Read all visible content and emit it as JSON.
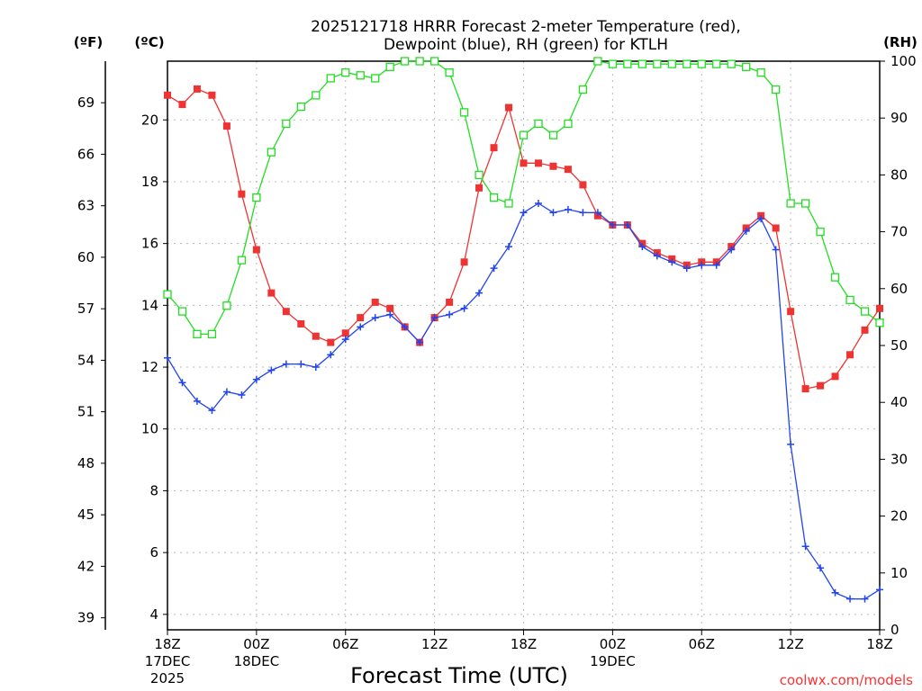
{
  "chart_data": {
    "type": "line",
    "title_line1": "2025121718 HRRR Forecast 2-meter Temperature (red),",
    "title_line2": "Dewpoint (blue), RH (green) for KTLH",
    "xlabel": "Forecast Time (UTC)",
    "credit": "coolwx.com/models",
    "unit_f": "(ºF)",
    "unit_c": "(ºC)",
    "unit_rh": "(RH)",
    "x_range_hours": [
      0,
      48
    ],
    "c_range": [
      3.5,
      21.9
    ],
    "rh_range": [
      0,
      100
    ],
    "x_ticks": [
      {
        "h": 0,
        "lines": [
          "18Z",
          "17DEC",
          "2025"
        ]
      },
      {
        "h": 6,
        "lines": [
          "00Z",
          "18DEC"
        ]
      },
      {
        "h": 12,
        "lines": [
          "06Z"
        ]
      },
      {
        "h": 18,
        "lines": [
          "12Z"
        ]
      },
      {
        "h": 24,
        "lines": [
          "18Z"
        ]
      },
      {
        "h": 30,
        "lines": [
          "00Z",
          "19DEC"
        ]
      },
      {
        "h": 36,
        "lines": [
          "06Z"
        ]
      },
      {
        "h": 42,
        "lines": [
          "12Z"
        ]
      },
      {
        "h": 48,
        "lines": [
          "18Z"
        ]
      }
    ],
    "c_ticks": [
      4,
      6,
      8,
      10,
      12,
      14,
      16,
      18,
      20
    ],
    "f_ticks": [
      39,
      42,
      45,
      48,
      51,
      54,
      57,
      60,
      63,
      66,
      69
    ],
    "rh_ticks": [
      0,
      10,
      20,
      30,
      40,
      50,
      60,
      70,
      80,
      90,
      100
    ],
    "series": [
      {
        "name": "Temperature",
        "axis": "C",
        "color": "#ee3333",
        "marker": "filled-square",
        "values": [
          20.8,
          20.5,
          21.0,
          20.8,
          19.8,
          17.6,
          15.8,
          14.4,
          13.8,
          13.4,
          13.0,
          12.8,
          13.1,
          13.6,
          14.1,
          13.9,
          13.3,
          12.8,
          13.6,
          14.1,
          15.4,
          17.8,
          19.1,
          20.4,
          18.6,
          18.6,
          18.5,
          18.4,
          17.9,
          16.9,
          16.6,
          16.6,
          16.0,
          15.7,
          15.5,
          15.3,
          15.4,
          15.4,
          15.9,
          16.5,
          16.9,
          16.5,
          13.8,
          11.3,
          11.4,
          11.7,
          12.4,
          13.2,
          13.9
        ]
      },
      {
        "name": "Dewpoint",
        "axis": "C",
        "color": "#2244ee",
        "marker": "plus",
        "values": [
          12.3,
          11.5,
          10.9,
          10.6,
          11.2,
          11.1,
          11.6,
          11.9,
          12.1,
          12.1,
          12.0,
          12.4,
          12.9,
          13.3,
          13.6,
          13.7,
          13.3,
          12.8,
          13.6,
          13.7,
          13.9,
          14.4,
          15.2,
          15.9,
          17.0,
          17.3,
          17.0,
          17.1,
          17.0,
          17.0,
          16.6,
          16.6,
          15.9,
          15.6,
          15.4,
          15.2,
          15.3,
          15.3,
          15.8,
          16.4,
          16.8,
          15.8,
          9.5,
          6.2,
          5.5,
          4.7,
          4.5,
          4.5,
          4.8
        ]
      },
      {
        "name": "RH",
        "axis": "RH",
        "color": "#22dd22",
        "marker": "open-square",
        "values": [
          59,
          56,
          52,
          52,
          57,
          65,
          76,
          84,
          89,
          92,
          94,
          97,
          98,
          97.5,
          97,
          99,
          100,
          100,
          100,
          98,
          91,
          80,
          76,
          75,
          87,
          89,
          87,
          89,
          95,
          100,
          99.5,
          99.5,
          99.5,
          99.5,
          99.5,
          99.5,
          99.5,
          99.5,
          99.5,
          99,
          98,
          95,
          75,
          75,
          70,
          62,
          58,
          56,
          54
        ]
      }
    ]
  }
}
